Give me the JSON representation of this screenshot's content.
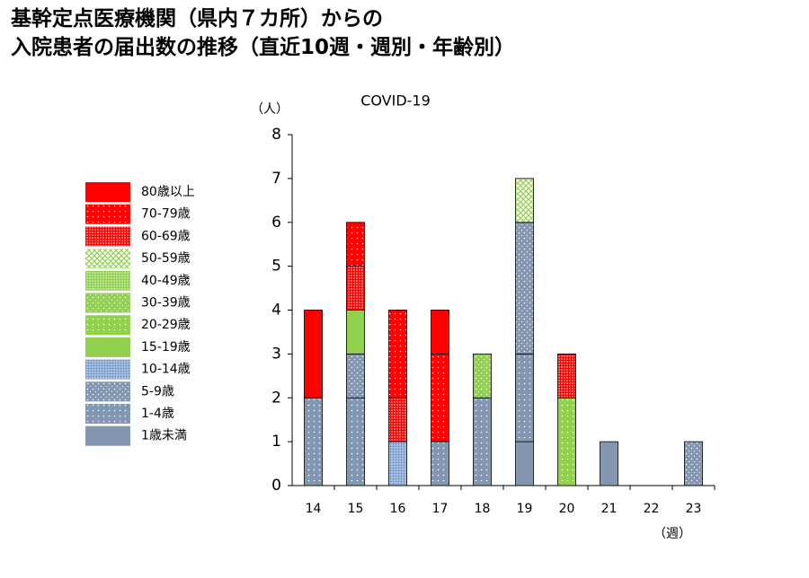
{
  "chart_data": {
    "type": "stacked_bar",
    "title": [
      "基幹定点医療機関（県内７カ所）からの",
      "入院患者の届出数の推移（直近10週・週別・年齢別）"
    ],
    "subtitle": "COVID-19",
    "y_label": "（人）",
    "x_label": "（週）",
    "categories": [
      "14",
      "15",
      "16",
      "17",
      "18",
      "19",
      "20",
      "21",
      "22",
      "23"
    ],
    "ylim": [
      0,
      8
    ],
    "yticks": [
      0,
      1,
      2,
      3,
      4,
      5,
      6,
      7,
      8
    ],
    "series": [
      {
        "name": "1歳未満",
        "color": "#8497b0",
        "pattern": "solid",
        "values": [
          0,
          0,
          0,
          0,
          0,
          1,
          0,
          1,
          0,
          0
        ]
      },
      {
        "name": "1-4歳",
        "color": "#8497b0",
        "pattern": "dots",
        "values": [
          2,
          2,
          0,
          1,
          2,
          2,
          0,
          0,
          0,
          0
        ]
      },
      {
        "name": "5-9歳",
        "color": "#8497b0",
        "pattern": "dots2",
        "values": [
          0,
          1,
          0,
          0,
          0,
          3,
          0,
          0,
          0,
          1
        ]
      },
      {
        "name": "10-14歳",
        "color": "#7f9fd0",
        "pattern": "dense",
        "values": [
          0,
          0,
          1,
          0,
          0,
          0,
          0,
          0,
          0,
          0
        ]
      },
      {
        "name": "15-19歳",
        "color": "#92d050",
        "pattern": "solid",
        "values": [
          0,
          1,
          0,
          0,
          0,
          0,
          0,
          0,
          0,
          0
        ]
      },
      {
        "name": "20-29歳",
        "color": "#92d050",
        "pattern": "dots",
        "values": [
          0,
          0,
          0,
          0,
          0,
          0,
          2,
          0,
          0,
          0
        ]
      },
      {
        "name": "30-39歳",
        "color": "#92d050",
        "pattern": "dots2",
        "values": [
          0,
          0,
          0,
          0,
          1,
          0,
          0,
          0,
          0,
          0
        ]
      },
      {
        "name": "40-49歳",
        "color": "#92d050",
        "pattern": "dense",
        "values": [
          0,
          0,
          0,
          0,
          0,
          0,
          0,
          0,
          0,
          0
        ]
      },
      {
        "name": "50-59歳",
        "color": "#92d050",
        "pattern": "cross",
        "values": [
          0,
          0,
          0,
          0,
          0,
          1,
          0,
          0,
          0,
          0
        ]
      },
      {
        "name": "60-69歳",
        "color": "#ff0000",
        "pattern": "dense",
        "values": [
          0,
          1,
          1,
          0,
          0,
          0,
          1,
          0,
          0,
          0
        ]
      },
      {
        "name": "70-79歳",
        "color": "#ff0000",
        "pattern": "dots",
        "values": [
          0,
          1,
          2,
          2,
          0,
          0,
          0,
          0,
          0,
          0
        ]
      },
      {
        "name": "80歳以上",
        "color": "#ff0000",
        "pattern": "solid",
        "values": [
          2,
          0,
          0,
          1,
          0,
          0,
          0,
          0,
          0,
          0
        ]
      }
    ]
  }
}
